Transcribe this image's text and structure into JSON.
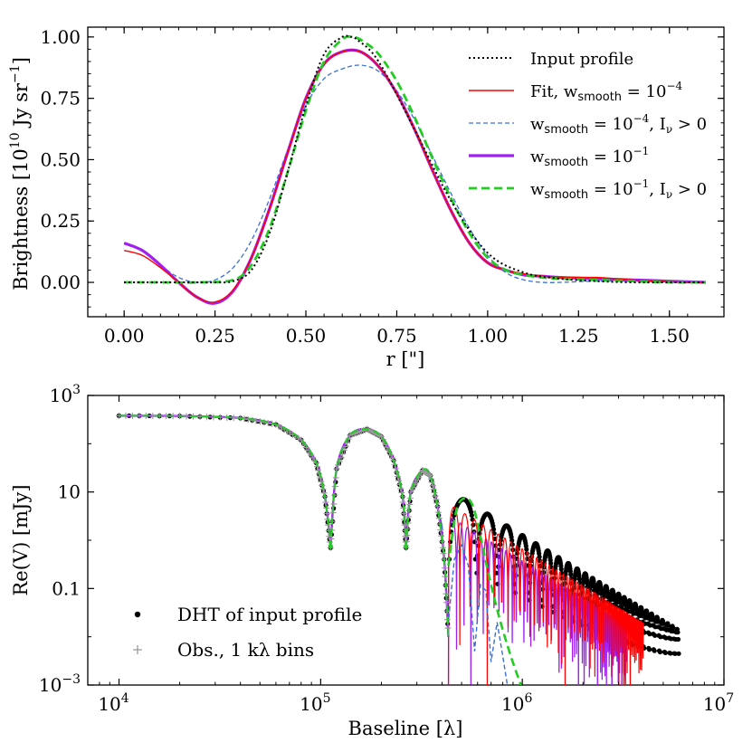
{
  "chart_data": [
    {
      "type": "line",
      "xlabel": "r [\"]",
      "ylabel": "Brightness [10",
      "ylabel_exp": "10",
      "ylabel_rest": " Jy sr",
      "ylabel_sup": "−1",
      "ylabel_close": "]",
      "xlim": [
        -0.1,
        1.65
      ],
      "ylim": [
        -0.14,
        1.04
      ],
      "xticks": [
        0.0,
        0.25,
        0.5,
        0.75,
        1.0,
        1.25,
        1.5
      ],
      "xtick_labels": [
        "0.00",
        "0.25",
        "0.50",
        "0.75",
        "1.00",
        "1.25",
        "1.50"
      ],
      "yticks": [
        0.0,
        0.25,
        0.5,
        0.75,
        1.0
      ],
      "ytick_labels": [
        "0.00",
        "0.25",
        "0.50",
        "0.75",
        "1.00"
      ],
      "legend": {
        "position": "top-right",
        "entries": [
          {
            "label": "Input profile",
            "color": "#000000",
            "style": "dotted"
          },
          {
            "label": "Fit, w",
            "sub": "smooth",
            "eq": " = 10",
            "sup": "−4",
            "tail": "",
            "color": "#ff0000",
            "style": "solid"
          },
          {
            "label": "w",
            "sub": "smooth",
            "eq": " = 10",
            "sup": "−4",
            "tail": ", I",
            "tail_sub": "ν",
            "tail_end": " > 0",
            "color": "#3a6fd8",
            "style": "dashed"
          },
          {
            "label": "w",
            "sub": "smooth",
            "eq": " = 10",
            "sup": "−1",
            "tail": "",
            "color": "#a020f0",
            "style": "thick"
          },
          {
            "label": "w",
            "sub": "smooth",
            "eq": " = 10",
            "sup": "−1",
            "tail": ", I",
            "tail_sub": "ν",
            "tail_end": " > 0",
            "color": "#22cc22",
            "style": "thickdashed"
          }
        ]
      },
      "series": [
        {
          "name": "Input profile",
          "color": "#000000",
          "x": [
            0,
            0.1,
            0.2,
            0.25,
            0.3,
            0.35,
            0.4,
            0.45,
            0.5,
            0.55,
            0.6,
            0.62,
            0.64,
            0.7,
            0.8,
            0.9,
            1.0,
            1.1,
            1.2,
            1.3,
            1.4,
            1.5,
            1.6
          ],
          "y": [
            0,
            0,
            0,
            0,
            0.005,
            0.05,
            0.2,
            0.45,
            0.72,
            0.93,
            1.0,
            1.0,
            0.99,
            0.9,
            0.62,
            0.33,
            0.12,
            0.04,
            0.015,
            0.005,
            0.0,
            0.0,
            0.0
          ]
        },
        {
          "name": "Fit, w_smooth = 1e-4",
          "color": "#ff0000",
          "x": [
            0,
            0.05,
            0.1,
            0.15,
            0.2,
            0.25,
            0.3,
            0.35,
            0.4,
            0.45,
            0.5,
            0.55,
            0.6,
            0.65,
            0.7,
            0.75,
            0.8,
            0.85,
            0.9,
            0.95,
            1.0,
            1.05,
            1.1,
            1.15,
            1.2,
            1.25,
            1.3,
            1.35,
            1.4,
            1.45,
            1.5,
            1.55,
            1.6
          ],
          "y": [
            0.13,
            0.11,
            0.06,
            0.0,
            -0.06,
            -0.08,
            -0.03,
            0.1,
            0.3,
            0.53,
            0.75,
            0.89,
            0.94,
            0.94,
            0.88,
            0.77,
            0.62,
            0.45,
            0.29,
            0.16,
            0.08,
            0.05,
            0.035,
            0.025,
            0.02,
            0.02,
            0.02,
            0.015,
            0.01,
            0.005,
            0.003,
            0.0,
            0.0
          ]
        },
        {
          "name": "w_smooth = 1e-4, Iv>0",
          "color": "#3a6fd8",
          "x": [
            0,
            0.05,
            0.1,
            0.15,
            0.2,
            0.25,
            0.3,
            0.35,
            0.4,
            0.45,
            0.5,
            0.55,
            0.6,
            0.65,
            0.7,
            0.75,
            0.8,
            0.85,
            0.9,
            0.95,
            1.0,
            1.05,
            1.1,
            1.15,
            1.2,
            1.3,
            1.4,
            1.5,
            1.6
          ],
          "y": [
            0.16,
            0.13,
            0.07,
            0.02,
            0.0,
            0.01,
            0.06,
            0.17,
            0.34,
            0.54,
            0.72,
            0.83,
            0.87,
            0.885,
            0.86,
            0.78,
            0.66,
            0.51,
            0.36,
            0.22,
            0.11,
            0.04,
            0.01,
            0.0,
            0.0,
            0.005,
            0.005,
            0.0,
            0.0
          ]
        },
        {
          "name": "w_smooth = 1e-1",
          "color": "#a020f0",
          "x": [
            0,
            0.05,
            0.1,
            0.15,
            0.2,
            0.25,
            0.3,
            0.35,
            0.4,
            0.45,
            0.5,
            0.55,
            0.6,
            0.65,
            0.7,
            0.75,
            0.8,
            0.85,
            0.9,
            0.95,
            1.0,
            1.05,
            1.1,
            1.15,
            1.2,
            1.3,
            1.4,
            1.5,
            1.6
          ],
          "y": [
            0.16,
            0.13,
            0.07,
            0.0,
            -0.06,
            -0.085,
            -0.035,
            0.1,
            0.3,
            0.53,
            0.75,
            0.89,
            0.94,
            0.94,
            0.88,
            0.77,
            0.62,
            0.45,
            0.29,
            0.16,
            0.08,
            0.05,
            0.03,
            0.025,
            0.02,
            0.015,
            0.01,
            0.005,
            0.0
          ]
        },
        {
          "name": "w_smooth = 1e-1, Iv>0",
          "color": "#22cc22",
          "x": [
            0,
            0.1,
            0.2,
            0.3,
            0.35,
            0.4,
            0.45,
            0.5,
            0.55,
            0.6,
            0.63,
            0.66,
            0.7,
            0.75,
            0.8,
            0.85,
            0.9,
            0.95,
            1.0,
            1.05,
            1.1,
            1.15,
            1.2,
            1.3,
            1.4,
            1.5,
            1.6
          ],
          "y": [
            0,
            0,
            0,
            0.01,
            0.07,
            0.22,
            0.45,
            0.7,
            0.9,
            0.99,
            1.0,
            0.98,
            0.93,
            0.82,
            0.67,
            0.5,
            0.34,
            0.2,
            0.1,
            0.05,
            0.03,
            0.02,
            0.015,
            0.01,
            0.005,
            0.0,
            0.0
          ]
        }
      ]
    },
    {
      "type": "scatter",
      "xlabel": "Baseline [λ]",
      "ylabel": "Re(V) [mJy]",
      "xscale": "log",
      "yscale": "log",
      "xlim": [
        7000,
        10000000
      ],
      "ylim": [
        0.001,
        1000
      ],
      "xticks": [
        10000,
        100000,
        1000000,
        10000000
      ],
      "xtick_base": "10",
      "xtick_exps": [
        "4",
        "5",
        "6",
        "7"
      ],
      "yticks": [
        0.001,
        0.1,
        10,
        1000
      ],
      "ytick_labels": [
        {
          "base": "10",
          "exp": "−3"
        },
        {
          "base": "0.1",
          "exp": ""
        },
        {
          "base": "10",
          "exp": ""
        },
        {
          "base": "10",
          "exp": "3"
        }
      ],
      "legend": {
        "position": "bottom-left",
        "entries": [
          {
            "label": "DHT of input profile",
            "marker": "dot",
            "color": "#000000"
          },
          {
            "label": "Obs., 1 kλ bins",
            "marker": "plus",
            "color": "#999999"
          }
        ]
      },
      "main_lobe": {
        "x": [
          10000,
          20000,
          40000,
          60000,
          80000,
          95000,
          105000,
          112000
        ],
        "y": [
          380,
          375,
          340,
          250,
          120,
          40,
          8,
          0.7
        ]
      },
      "second_lobe": {
        "x": [
          112000,
          120000,
          140000,
          170000,
          200000,
          230000,
          255000,
          265000
        ],
        "y": [
          0.7,
          30,
          150,
          200,
          140,
          45,
          8,
          0.7
        ]
      },
      "third_lobe": {
        "x": [
          265000,
          280000,
          320000,
          350000,
          380000,
          410000,
          430000
        ],
        "y": [
          0.7,
          10,
          28,
          22,
          5,
          0.4,
          0.01
        ]
      }
    }
  ]
}
